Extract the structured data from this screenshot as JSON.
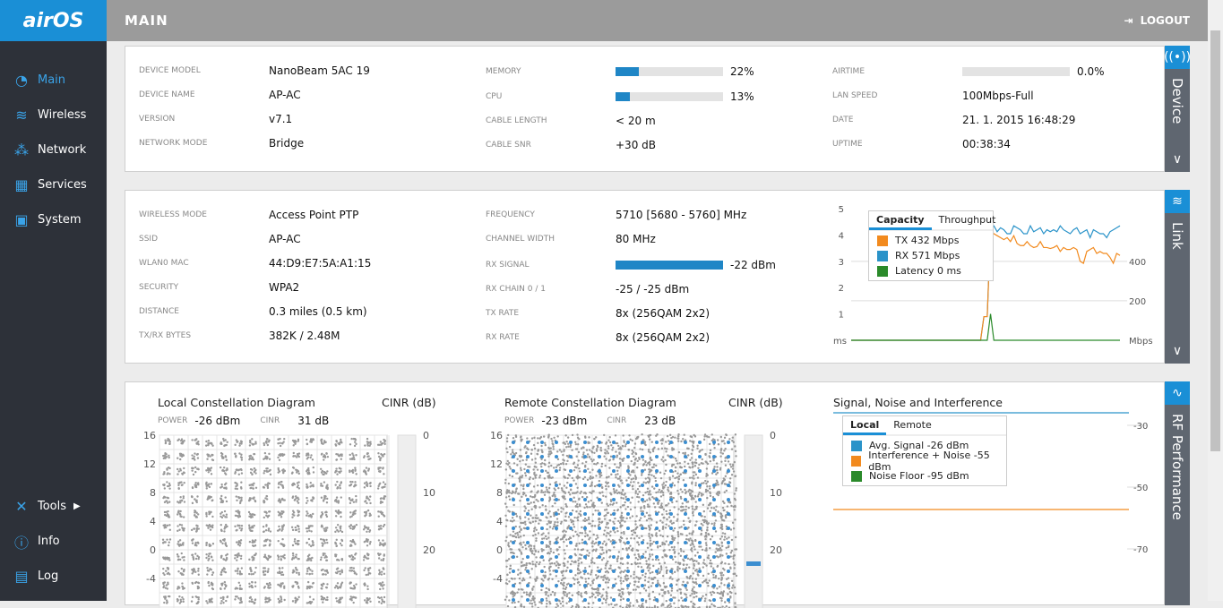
{
  "brand": {
    "logo": "airOS"
  },
  "sidebar": {
    "items": [
      {
        "label": "Main",
        "icon": "dashboard-icon"
      },
      {
        "label": "Wireless",
        "icon": "wifi-icon"
      },
      {
        "label": "Network",
        "icon": "network-icon"
      },
      {
        "label": "Services",
        "icon": "services-icon"
      },
      {
        "label": "System",
        "icon": "chip-icon"
      }
    ],
    "bottom": [
      {
        "label": "Tools",
        "icon": "tools-icon"
      },
      {
        "label": "Info",
        "icon": "info-icon"
      },
      {
        "label": "Log",
        "icon": "log-icon"
      }
    ]
  },
  "header": {
    "title": "MAIN",
    "logout": "LOGOUT"
  },
  "device": {
    "tab": "Device",
    "col1": [
      [
        "DEVICE MODEL",
        "NanoBeam 5AC 19"
      ],
      [
        "DEVICE NAME",
        "AP-AC"
      ],
      [
        "VERSION",
        "v7.1"
      ],
      [
        "NETWORK MODE",
        "Bridge"
      ]
    ],
    "memory": {
      "label": "MEMORY",
      "value": "22%",
      "percent": 22
    },
    "cpu": {
      "label": "CPU",
      "value": "13%",
      "percent": 13
    },
    "col2": [
      [
        "CABLE LENGTH",
        "< 20 m"
      ],
      [
        "CABLE SNR",
        "+30 dB"
      ]
    ],
    "airtime": {
      "label": "AIRTIME",
      "value": "0.0%",
      "percent": 0
    },
    "col3": [
      [
        "LAN SPEED",
        "100Mbps-Full"
      ],
      [
        "DATE",
        "21. 1. 2015 16:48:29"
      ],
      [
        "UPTIME",
        "00:38:34"
      ]
    ]
  },
  "link": {
    "tab": "Link",
    "col1": [
      [
        "WIRELESS MODE",
        "Access Point PTP"
      ],
      [
        "SSID",
        "AP-AC"
      ],
      [
        "WLAN0 MAC",
        "44:D9:E7:5A:A1:15"
      ],
      [
        "SECURITY",
        "WPA2"
      ],
      [
        "DISTANCE",
        "0.3 miles (0.5 km)"
      ],
      [
        "TX/RX BYTES",
        "382K / 2.48M"
      ]
    ],
    "col2a": [
      [
        "FREQUENCY",
        "5710 [5680 - 5760] MHz"
      ],
      [
        "CHANNEL WIDTH",
        "80 MHz"
      ]
    ],
    "rx_signal": {
      "label": "RX SIGNAL",
      "value": "-22 dBm",
      "percent": 100
    },
    "col2b": [
      [
        "RX CHAIN 0 / 1",
        "-25 / -25 dBm"
      ],
      [
        "TX RATE",
        "8x (256QAM 2x2)"
      ],
      [
        "RX RATE",
        "8x (256QAM 2x2)"
      ]
    ]
  },
  "chart_data": {
    "type": "line",
    "tabs": [
      "Capacity",
      "Throughput"
    ],
    "active_tab": "Capacity",
    "legend": [
      {
        "name": "TX 432 Mbps",
        "color": "#f28a1e"
      },
      {
        "name": "RX 571 Mbps",
        "color": "#2a93c9"
      },
      {
        "name": "Latency 0 ms",
        "color": "#2a8a2a"
      }
    ],
    "left_axis": {
      "label": "ms",
      "ticks": [
        "5",
        "4",
        "3",
        "2",
        "1"
      ],
      "ylim": [
        0,
        5
      ]
    },
    "right_axis": {
      "label": "Mbps",
      "ticks": [
        "400",
        "200"
      ],
      "ylim": [
        0,
        667
      ]
    },
    "tx": [
      0,
      0,
      0,
      0,
      0,
      0,
      0,
      0,
      0,
      0,
      0,
      0,
      0,
      0,
      0,
      0,
      0,
      0,
      0,
      0,
      0,
      0,
      0,
      0,
      0,
      0,
      0,
      0,
      0,
      0,
      0,
      0,
      0,
      0,
      0,
      0,
      0,
      0,
      0,
      0,
      120,
      120,
      560,
      540,
      530,
      520,
      510,
      520,
      500,
      530,
      490,
      480,
      480,
      500,
      480,
      470,
      475,
      500,
      470,
      470,
      465,
      470,
      480,
      450,
      470,
      460,
      460,
      470,
      460,
      400,
      390,
      450,
      460,
      470,
      440,
      450,
      440,
      440,
      420,
      390,
      440,
      430
    ],
    "rx": [
      0,
      0,
      0,
      0,
      0,
      0,
      0,
      0,
      0,
      0,
      0,
      0,
      0,
      0,
      0,
      0,
      0,
      0,
      0,
      0,
      0,
      0,
      0,
      0,
      0,
      0,
      0,
      0,
      0,
      0,
      0,
      0,
      0,
      0,
      0,
      0,
      0,
      0,
      0,
      0,
      120,
      120,
      570,
      580,
      550,
      570,
      560,
      540,
      540,
      580,
      570,
      560,
      540,
      540,
      580,
      550,
      560,
      570,
      540,
      560,
      550,
      560,
      550,
      580,
      560,
      550,
      540,
      560,
      570,
      540,
      550,
      560,
      520,
      560,
      550,
      540,
      540,
      520,
      550,
      560,
      570,
      580
    ],
    "latency": [
      0,
      0,
      0,
      0,
      0,
      0,
      0,
      0,
      0,
      0,
      0,
      0,
      0,
      0,
      0,
      0,
      0,
      0,
      0,
      0,
      0,
      0,
      0,
      0,
      0,
      0,
      0,
      0,
      0,
      0,
      0,
      0,
      0,
      0,
      0,
      0,
      0,
      0,
      0,
      0,
      0,
      0,
      1,
      0,
      0,
      0,
      0,
      0,
      0,
      0,
      0,
      0,
      0,
      0,
      0,
      0,
      0,
      0,
      0,
      0,
      0,
      0,
      0,
      0,
      0,
      0,
      0,
      0,
      0,
      0,
      0,
      0,
      0,
      0,
      0,
      0,
      0,
      0,
      0,
      0,
      0,
      0
    ]
  },
  "rf": {
    "tab": "RF Performance",
    "local": {
      "title": "Local Constellation Diagram",
      "cinr_title": "CINR (dB)",
      "power_label": "POWER",
      "power": "-26 dBm",
      "cinr_label": "CINR",
      "cinr": "31 dB"
    },
    "remote": {
      "title": "Remote Constellation Diagram",
      "cinr_title": "CINR (dB)",
      "power_label": "POWER",
      "power": "-23 dBm",
      "cinr_label": "CINR",
      "cinr": "23 dB"
    },
    "y_ticks": [
      "16",
      "12",
      "8",
      "4",
      "0",
      "-4"
    ],
    "cinr_ticks": [
      "0",
      "10",
      "20"
    ],
    "sni": {
      "title": "Signal, Noise and Interference",
      "tabs": [
        "Local",
        "Remote"
      ],
      "legend": [
        {
          "name": "Avg. Signal -26 dBm",
          "color": "#2a93c9"
        },
        {
          "name": "Interference + Noise -55 dBm",
          "color": "#f28a1e"
        },
        {
          "name": "Noise Floor -95 dBm",
          "color": "#2a8a2a"
        }
      ],
      "ticks": [
        "-30",
        "-50",
        "-70"
      ]
    }
  }
}
